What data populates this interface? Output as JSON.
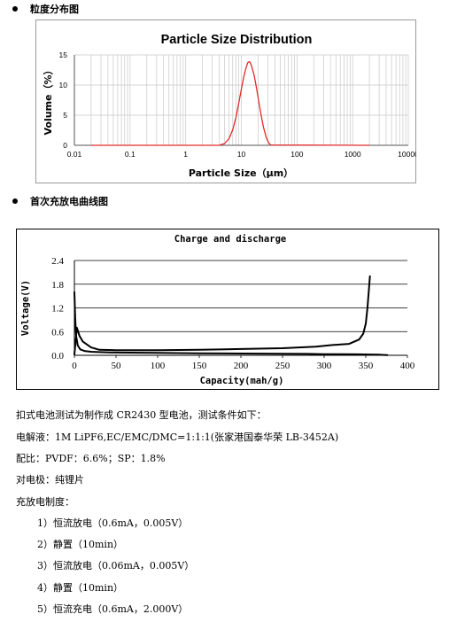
{
  "sections": {
    "psd_heading": "粒度分布图",
    "cd_heading": "首次充放电曲线图"
  },
  "chart_data": [
    {
      "type": "line",
      "title": "Particle Size Distribution",
      "xlabel": "Particle Size（μm）",
      "ylabel": "Volume（%）",
      "x_scale": "log",
      "xlim": [
        0.01,
        10000
      ],
      "ylim": [
        0,
        15
      ],
      "xticks": [
        "0.01",
        "0.1",
        "1",
        "10",
        "100",
        "1000",
        "10000"
      ],
      "yticks": [
        "0",
        "5",
        "10",
        "15"
      ],
      "grid": true,
      "series": [
        {
          "color": "#e32b2b",
          "x": [
            0.02,
            4,
            5,
            6,
            7,
            8,
            9,
            10,
            11,
            12,
            13,
            14,
            15,
            17,
            19,
            21,
            23,
            25,
            28,
            31,
            34,
            2000
          ],
          "y": [
            0,
            0,
            0.3,
            1.1,
            2.6,
            4.6,
            7.0,
            9.3,
            11.3,
            12.7,
            13.7,
            13.9,
            13.4,
            11.6,
            9.2,
            6.8,
            4.7,
            3.0,
            1.3,
            0.4,
            0.05,
            0
          ]
        }
      ]
    },
    {
      "type": "line",
      "title": "Charge and discharge",
      "xlabel": "Capacity(mah/g)",
      "ylabel": "Voltage(V)",
      "xlim": [
        0,
        400
      ],
      "ylim": [
        0,
        2.4
      ],
      "xticks": [
        "0",
        "50",
        "100",
        "150",
        "200",
        "250",
        "300",
        "350",
        "400"
      ],
      "yticks": [
        "0.0",
        "0.6",
        "1.2",
        "1.8",
        "2.4"
      ],
      "grid": true,
      "series": [
        {
          "color": "#000000",
          "x": [
            0,
            1,
            2,
            4,
            7,
            12,
            20,
            30,
            50,
            100,
            150,
            200,
            250,
            280,
            300,
            320,
            340,
            355,
            365,
            372,
            376
          ],
          "y": [
            1.6,
            0.95,
            0.5,
            0.25,
            0.15,
            0.11,
            0.09,
            0.08,
            0.07,
            0.06,
            0.05,
            0.045,
            0.04,
            0.035,
            0.03,
            0.028,
            0.025,
            0.02,
            0.015,
            0.01,
            0.005
          ]
        },
        {
          "color": "#000000",
          "x": [
            0,
            3,
            6,
            10,
            20,
            30,
            50,
            100,
            150,
            200,
            250,
            290,
            310,
            330,
            342,
            347,
            350,
            352,
            353.5,
            355
          ],
          "y": [
            0.02,
            0.7,
            0.5,
            0.35,
            0.2,
            0.14,
            0.13,
            0.13,
            0.14,
            0.16,
            0.18,
            0.22,
            0.26,
            0.29,
            0.4,
            0.55,
            0.8,
            1.2,
            1.6,
            2.0
          ]
        }
      ]
    }
  ],
  "text_lines": [
    "扣式电池测试为制作成 CR2430 型电池，测试条件如下：",
    "电解液：1M LiPF6,EC/EMC/DMC=1:1:1(张家港国泰华荣 LB-3452A)",
    "配比：PVDF：6.6%；SP：1.8%",
    "对电极：纯锂片",
    "充放电制度："
  ],
  "steps": [
    "1）恒流放电（0.6mA，0.005V）",
    "2）静置（10min）",
    "3）恒流放电（0.06mA，0.005V）",
    "4）静置（10min）",
    "5）恒流充电（0.6mA，2.000V）"
  ]
}
